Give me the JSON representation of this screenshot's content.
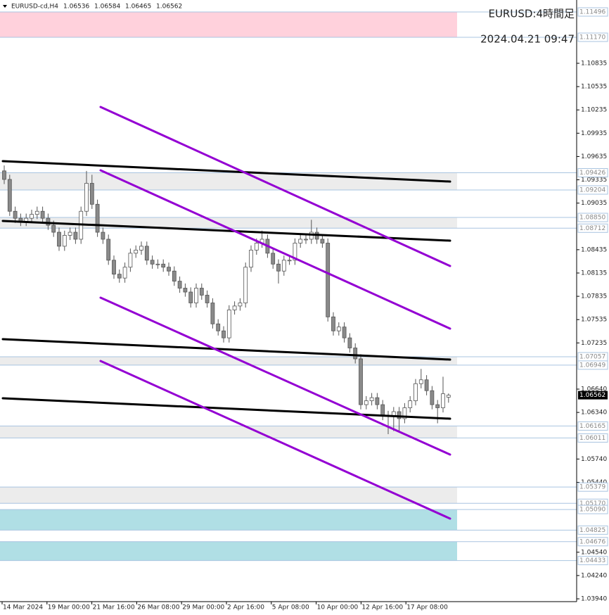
{
  "chart_data": {
    "type": "candlestick",
    "header": {
      "symbol": "EURUSD-cd,H4",
      "ohlc": [
        1.06536,
        1.06584,
        1.06465,
        1.06562
      ]
    },
    "title": "EURUSD:4時間足",
    "subtitle": "2024.04.21 09:47",
    "x_labels": [
      "14 Mar 2024",
      "19 Mar 00:00",
      "21 Mar 16:00",
      "26 Mar 08:00",
      "29 Mar 00:00",
      "2 Apr 16:00",
      "5 Apr 08:00",
      "10 Apr 00:00",
      "12 Apr 16:00",
      "17 Apr 08:00"
    ],
    "ylim": [
      1.03913,
      1.1165
    ],
    "yticks": [
      1.10835,
      1.10535,
      1.10235,
      1.09935,
      1.09635,
      1.09335,
      1.09035,
      1.08435,
      1.08135,
      1.07835,
      1.07535,
      1.07235,
      {
        "value": 1.0664,
        "label": "1.06640"
      },
      {
        "value": 1.0634,
        "label": "1.06340"
      },
      {
        "value": 1.0574,
        "label": "1.05740"
      },
      {
        "value": 1.0544,
        "label": "1.05440"
      },
      {
        "value": 1.0454,
        "label": "1.04540"
      },
      {
        "value": 1.0424,
        "label": "1.04240"
      },
      {
        "value": 1.0394,
        "label": "1.03940"
      }
    ],
    "levels": [
      1.11496,
      {
        "value": 1.1117,
        "label": "1.11170"
      },
      1.09426,
      1.09204,
      {
        "value": 1.0885,
        "label": "1.08850"
      },
      1.08712,
      1.07057,
      1.06949,
      1.06165,
      1.06011,
      1.05379,
      {
        "value": 1.0517,
        "label": "1.05170"
      },
      {
        "value": 1.0509,
        "label": "1.05090"
      },
      1.04825,
      1.04676,
      1.04433
    ],
    "zones": [
      {
        "ylim": [
          1.1117,
          1.11496
        ],
        "color": "#ffd1dc"
      },
      {
        "ylim": [
          1.09204,
          1.09426
        ],
        "color": "#ececec"
      },
      {
        "ylim": [
          1.08712,
          1.0885
        ],
        "color": "#ececec"
      },
      {
        "ylim": [
          1.06949,
          1.07057
        ],
        "color": "#ececec"
      },
      {
        "ylim": [
          1.06011,
          1.06165
        ],
        "color": "#ececec"
      },
      {
        "ylim": [
          1.0517,
          1.05379
        ],
        "color": "#ececec"
      },
      {
        "ylim": [
          1.04825,
          1.0509
        ],
        "color": "#b0dfe5"
      },
      {
        "ylim": [
          1.04433,
          1.04676
        ],
        "color": "#b0dfe5"
      }
    ],
    "last_price": 1.06562,
    "ohlc": [
      [
        1.0945,
        1.0952,
        1.0928,
        1.0934
      ],
      [
        1.0934,
        1.094,
        1.0887,
        1.0893
      ],
      [
        1.0893,
        1.0899,
        1.0878,
        1.0884
      ],
      [
        1.0884,
        1.089,
        1.0874,
        1.088
      ],
      [
        1.088,
        1.089,
        1.0874,
        1.0884
      ],
      [
        1.0884,
        1.0895,
        1.0878,
        1.0889
      ],
      [
        1.0889,
        1.0899,
        1.0883,
        1.0893
      ],
      [
        1.0893,
        1.0899,
        1.0878,
        1.0884
      ],
      [
        1.0884,
        1.089,
        1.0869,
        1.0875
      ],
      [
        1.0875,
        1.0881,
        1.086,
        1.0866
      ],
      [
        1.0866,
        1.0872,
        1.0842,
        1.0848
      ],
      [
        1.0848,
        1.0868,
        1.0842,
        1.0862
      ],
      [
        1.0862,
        1.0872,
        1.0856,
        1.0866
      ],
      [
        1.0866,
        1.0872,
        1.0851,
        1.0857
      ],
      [
        1.0857,
        1.0899,
        1.0851,
        1.0893
      ],
      [
        1.0893,
        1.0945,
        1.0887,
        1.0929
      ],
      [
        1.0929,
        1.094,
        1.0896,
        1.0902
      ],
      [
        1.0902,
        1.0908,
        1.086,
        1.0866
      ],
      [
        1.0866,
        1.0872,
        1.0851,
        1.0857
      ],
      [
        1.0857,
        1.0863,
        1.0824,
        1.083
      ],
      [
        1.083,
        1.0836,
        1.0806,
        1.0812
      ],
      [
        1.0812,
        1.0818,
        1.0801,
        1.0807
      ],
      [
        1.0807,
        1.0827,
        1.0801,
        1.0821
      ],
      [
        1.0821,
        1.0845,
        1.0815,
        1.0839
      ],
      [
        1.0839,
        1.0849,
        1.0833,
        1.0843
      ],
      [
        1.0843,
        1.0854,
        1.0837,
        1.0848
      ],
      [
        1.0848,
        1.0854,
        1.0824,
        1.083
      ],
      [
        1.083,
        1.0836,
        1.0819,
        1.0825
      ],
      [
        1.0825,
        1.0831,
        1.0819,
        1.0825
      ],
      [
        1.0825,
        1.0831,
        1.0815,
        1.0821
      ],
      [
        1.0821,
        1.0827,
        1.081,
        1.0816
      ],
      [
        1.0816,
        1.0822,
        1.0797,
        1.0803
      ],
      [
        1.0803,
        1.0809,
        1.0788,
        1.0794
      ],
      [
        1.0794,
        1.08,
        1.0783,
        1.0789
      ],
      [
        1.0789,
        1.0795,
        1.0769,
        1.0775
      ],
      [
        1.0775,
        1.08,
        1.0769,
        1.0794
      ],
      [
        1.0794,
        1.08,
        1.0779,
        1.0785
      ],
      [
        1.0785,
        1.0791,
        1.0769,
        1.0775
      ],
      [
        1.0775,
        1.0781,
        1.0742,
        1.0748
      ],
      [
        1.0748,
        1.0754,
        1.0733,
        1.0739
      ],
      [
        1.0739,
        1.0745,
        1.0724,
        1.073
      ],
      [
        1.073,
        1.0772,
        1.0724,
        1.0766
      ],
      [
        1.0766,
        1.0777,
        1.076,
        1.0771
      ],
      [
        1.0771,
        1.0781,
        1.0765,
        1.0775
      ],
      [
        1.0775,
        1.0827,
        1.0769,
        1.0821
      ],
      [
        1.0821,
        1.0849,
        1.0815,
        1.0843
      ],
      [
        1.0843,
        1.0858,
        1.0837,
        1.0852
      ],
      [
        1.0852,
        1.0868,
        1.0846,
        1.0857
      ],
      [
        1.0857,
        1.0863,
        1.0833,
        1.0839
      ],
      [
        1.0839,
        1.0845,
        1.0819,
        1.0825
      ],
      [
        1.0825,
        1.0831,
        1.08,
        1.0816
      ],
      [
        1.0816,
        1.0836,
        1.081,
        1.083
      ],
      [
        1.083,
        1.0836,
        1.0824,
        1.083
      ],
      [
        1.083,
        1.0858,
        1.0824,
        1.0852
      ],
      [
        1.0852,
        1.0863,
        1.0846,
        1.0857
      ],
      [
        1.0857,
        1.0863,
        1.0851,
        1.0857
      ],
      [
        1.0857,
        1.0882,
        1.0851,
        1.0866
      ],
      [
        1.0866,
        1.0872,
        1.0851,
        1.0857
      ],
      [
        1.0857,
        1.0863,
        1.0846,
        1.0852
      ],
      [
        1.0852,
        1.0858,
        1.0751,
        1.0757
      ],
      [
        1.0757,
        1.0763,
        1.0733,
        1.0739
      ],
      [
        1.0739,
        1.075,
        1.0733,
        1.0744
      ],
      [
        1.0744,
        1.075,
        1.0724,
        1.073
      ],
      [
        1.073,
        1.0736,
        1.0711,
        1.0717
      ],
      [
        1.0717,
        1.0723,
        1.0697,
        1.0703
      ],
      [
        1.0703,
        1.0709,
        1.0638,
        1.0644
      ],
      [
        1.0644,
        1.0655,
        1.0638,
        1.0649
      ],
      [
        1.0649,
        1.0659,
        1.0643,
        1.0653
      ],
      [
        1.0653,
        1.0659,
        1.0638,
        1.0644
      ],
      [
        1.0644,
        1.065,
        1.0624,
        1.063
      ],
      [
        1.063,
        1.0636,
        1.0606,
        1.063
      ],
      [
        1.063,
        1.0641,
        1.061,
        1.0635
      ],
      [
        1.0635,
        1.0641,
        1.0608,
        1.0626
      ],
      [
        1.0626,
        1.0646,
        1.062,
        1.064
      ],
      [
        1.064,
        1.0655,
        1.0634,
        1.0649
      ],
      [
        1.0649,
        1.0677,
        1.0643,
        1.0671
      ],
      [
        1.0671,
        1.069,
        1.0665,
        1.0676
      ],
      [
        1.0676,
        1.0682,
        1.0656,
        1.0662
      ],
      [
        1.0662,
        1.0668,
        1.0638,
        1.0644
      ],
      [
        1.0644,
        1.065,
        1.062,
        1.064
      ],
      [
        1.064,
        1.068,
        1.0634,
        1.0658
      ],
      [
        1.06536,
        1.06584,
        1.06465,
        1.06562
      ]
    ],
    "colors": {
      "wick": "#555555",
      "up": "#ffffff",
      "down": "#8a8a8a",
      "level": "#a9c4e0"
    }
  }
}
